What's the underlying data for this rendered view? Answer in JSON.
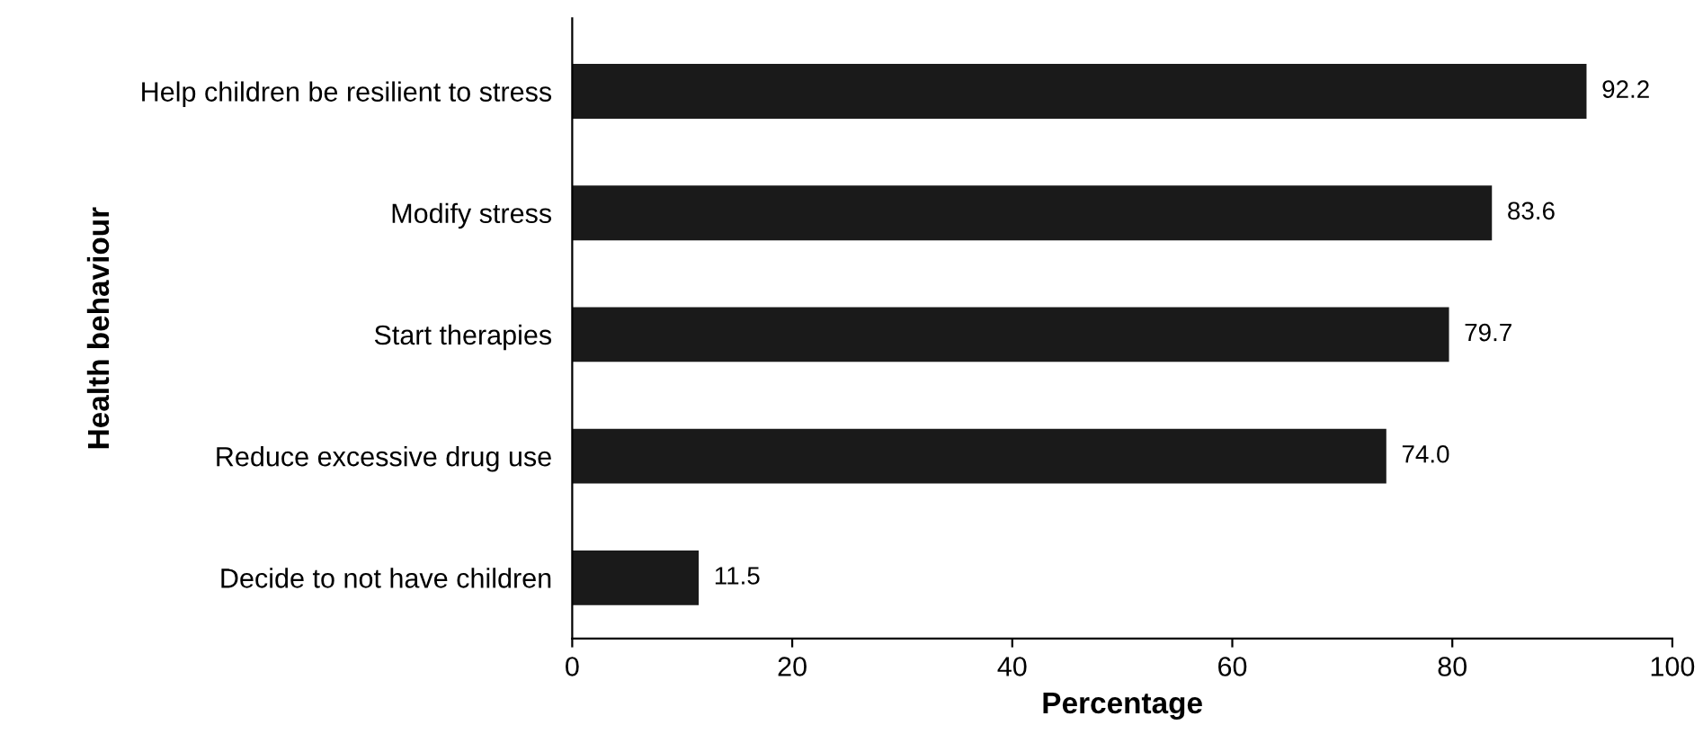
{
  "chart_data": {
    "type": "bar",
    "orientation": "horizontal",
    "xlabel": "Percentage",
    "ylabel": "Health behaviour",
    "categories": [
      "Help children be resilient to stress",
      "Modify stress",
      "Start therapies",
      "Reduce excessive drug use",
      "Decide to not have children"
    ],
    "values": [
      92.2,
      83.6,
      79.7,
      74.0,
      11.5
    ],
    "value_labels": [
      "92.2",
      "83.6",
      "79.7",
      "74.0",
      "11.5"
    ],
    "color": "#1a1a1a",
    "xlim": [
      0,
      100
    ],
    "xticks": [
      0,
      20,
      40,
      60,
      80,
      100
    ],
    "grid": false,
    "legend": false
  }
}
